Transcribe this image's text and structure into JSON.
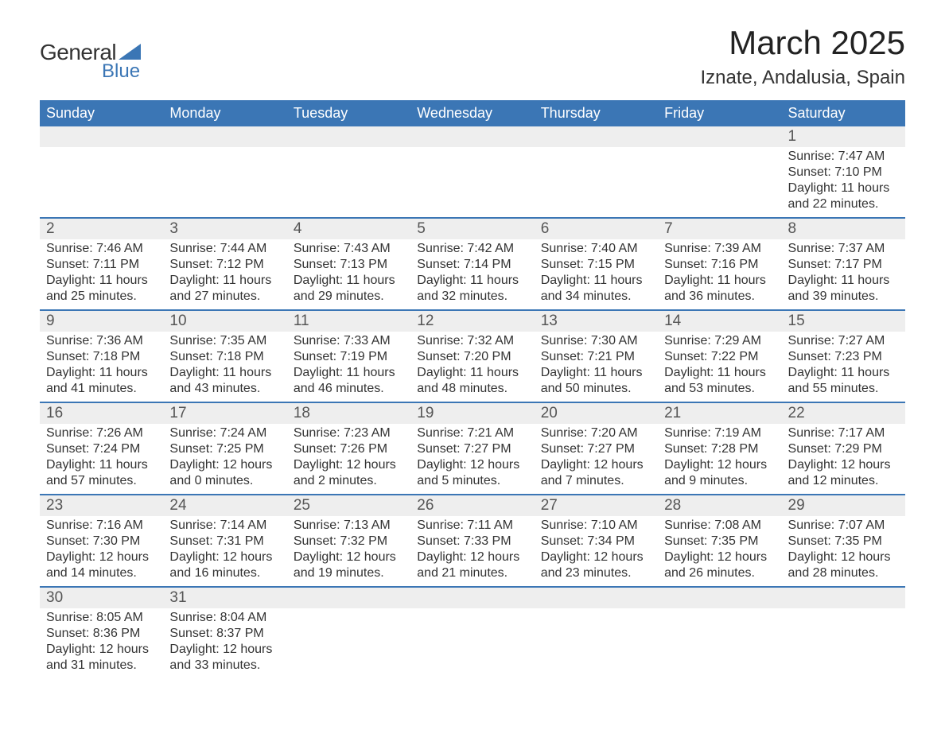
{
  "logo": {
    "text_general": "General",
    "text_blue": "Blue",
    "triangle_color": "#3b76b5"
  },
  "title": "March 2025",
  "location": "Iznate, Andalusia, Spain",
  "colors": {
    "header_bg": "#3b76b5",
    "header_text": "#ffffff",
    "day_num_bg": "#eeeeee",
    "row_border": "#3b76b5",
    "body_text": "#333333"
  },
  "day_headers": [
    "Sunday",
    "Monday",
    "Tuesday",
    "Wednesday",
    "Thursday",
    "Friday",
    "Saturday"
  ],
  "weeks": [
    [
      null,
      null,
      null,
      null,
      null,
      null,
      {
        "num": "1",
        "sunrise": "Sunrise: 7:47 AM",
        "sunset": "Sunset: 7:10 PM",
        "daylight1": "Daylight: 11 hours",
        "daylight2": "and 22 minutes."
      }
    ],
    [
      {
        "num": "2",
        "sunrise": "Sunrise: 7:46 AM",
        "sunset": "Sunset: 7:11 PM",
        "daylight1": "Daylight: 11 hours",
        "daylight2": "and 25 minutes."
      },
      {
        "num": "3",
        "sunrise": "Sunrise: 7:44 AM",
        "sunset": "Sunset: 7:12 PM",
        "daylight1": "Daylight: 11 hours",
        "daylight2": "and 27 minutes."
      },
      {
        "num": "4",
        "sunrise": "Sunrise: 7:43 AM",
        "sunset": "Sunset: 7:13 PM",
        "daylight1": "Daylight: 11 hours",
        "daylight2": "and 29 minutes."
      },
      {
        "num": "5",
        "sunrise": "Sunrise: 7:42 AM",
        "sunset": "Sunset: 7:14 PM",
        "daylight1": "Daylight: 11 hours",
        "daylight2": "and 32 minutes."
      },
      {
        "num": "6",
        "sunrise": "Sunrise: 7:40 AM",
        "sunset": "Sunset: 7:15 PM",
        "daylight1": "Daylight: 11 hours",
        "daylight2": "and 34 minutes."
      },
      {
        "num": "7",
        "sunrise": "Sunrise: 7:39 AM",
        "sunset": "Sunset: 7:16 PM",
        "daylight1": "Daylight: 11 hours",
        "daylight2": "and 36 minutes."
      },
      {
        "num": "8",
        "sunrise": "Sunrise: 7:37 AM",
        "sunset": "Sunset: 7:17 PM",
        "daylight1": "Daylight: 11 hours",
        "daylight2": "and 39 minutes."
      }
    ],
    [
      {
        "num": "9",
        "sunrise": "Sunrise: 7:36 AM",
        "sunset": "Sunset: 7:18 PM",
        "daylight1": "Daylight: 11 hours",
        "daylight2": "and 41 minutes."
      },
      {
        "num": "10",
        "sunrise": "Sunrise: 7:35 AM",
        "sunset": "Sunset: 7:18 PM",
        "daylight1": "Daylight: 11 hours",
        "daylight2": "and 43 minutes."
      },
      {
        "num": "11",
        "sunrise": "Sunrise: 7:33 AM",
        "sunset": "Sunset: 7:19 PM",
        "daylight1": "Daylight: 11 hours",
        "daylight2": "and 46 minutes."
      },
      {
        "num": "12",
        "sunrise": "Sunrise: 7:32 AM",
        "sunset": "Sunset: 7:20 PM",
        "daylight1": "Daylight: 11 hours",
        "daylight2": "and 48 minutes."
      },
      {
        "num": "13",
        "sunrise": "Sunrise: 7:30 AM",
        "sunset": "Sunset: 7:21 PM",
        "daylight1": "Daylight: 11 hours",
        "daylight2": "and 50 minutes."
      },
      {
        "num": "14",
        "sunrise": "Sunrise: 7:29 AM",
        "sunset": "Sunset: 7:22 PM",
        "daylight1": "Daylight: 11 hours",
        "daylight2": "and 53 minutes."
      },
      {
        "num": "15",
        "sunrise": "Sunrise: 7:27 AM",
        "sunset": "Sunset: 7:23 PM",
        "daylight1": "Daylight: 11 hours",
        "daylight2": "and 55 minutes."
      }
    ],
    [
      {
        "num": "16",
        "sunrise": "Sunrise: 7:26 AM",
        "sunset": "Sunset: 7:24 PM",
        "daylight1": "Daylight: 11 hours",
        "daylight2": "and 57 minutes."
      },
      {
        "num": "17",
        "sunrise": "Sunrise: 7:24 AM",
        "sunset": "Sunset: 7:25 PM",
        "daylight1": "Daylight: 12 hours",
        "daylight2": "and 0 minutes."
      },
      {
        "num": "18",
        "sunrise": "Sunrise: 7:23 AM",
        "sunset": "Sunset: 7:26 PM",
        "daylight1": "Daylight: 12 hours",
        "daylight2": "and 2 minutes."
      },
      {
        "num": "19",
        "sunrise": "Sunrise: 7:21 AM",
        "sunset": "Sunset: 7:27 PM",
        "daylight1": "Daylight: 12 hours",
        "daylight2": "and 5 minutes."
      },
      {
        "num": "20",
        "sunrise": "Sunrise: 7:20 AM",
        "sunset": "Sunset: 7:27 PM",
        "daylight1": "Daylight: 12 hours",
        "daylight2": "and 7 minutes."
      },
      {
        "num": "21",
        "sunrise": "Sunrise: 7:19 AM",
        "sunset": "Sunset: 7:28 PM",
        "daylight1": "Daylight: 12 hours",
        "daylight2": "and 9 minutes."
      },
      {
        "num": "22",
        "sunrise": "Sunrise: 7:17 AM",
        "sunset": "Sunset: 7:29 PM",
        "daylight1": "Daylight: 12 hours",
        "daylight2": "and 12 minutes."
      }
    ],
    [
      {
        "num": "23",
        "sunrise": "Sunrise: 7:16 AM",
        "sunset": "Sunset: 7:30 PM",
        "daylight1": "Daylight: 12 hours",
        "daylight2": "and 14 minutes."
      },
      {
        "num": "24",
        "sunrise": "Sunrise: 7:14 AM",
        "sunset": "Sunset: 7:31 PM",
        "daylight1": "Daylight: 12 hours",
        "daylight2": "and 16 minutes."
      },
      {
        "num": "25",
        "sunrise": "Sunrise: 7:13 AM",
        "sunset": "Sunset: 7:32 PM",
        "daylight1": "Daylight: 12 hours",
        "daylight2": "and 19 minutes."
      },
      {
        "num": "26",
        "sunrise": "Sunrise: 7:11 AM",
        "sunset": "Sunset: 7:33 PM",
        "daylight1": "Daylight: 12 hours",
        "daylight2": "and 21 minutes."
      },
      {
        "num": "27",
        "sunrise": "Sunrise: 7:10 AM",
        "sunset": "Sunset: 7:34 PM",
        "daylight1": "Daylight: 12 hours",
        "daylight2": "and 23 minutes."
      },
      {
        "num": "28",
        "sunrise": "Sunrise: 7:08 AM",
        "sunset": "Sunset: 7:35 PM",
        "daylight1": "Daylight: 12 hours",
        "daylight2": "and 26 minutes."
      },
      {
        "num": "29",
        "sunrise": "Sunrise: 7:07 AM",
        "sunset": "Sunset: 7:35 PM",
        "daylight1": "Daylight: 12 hours",
        "daylight2": "and 28 minutes."
      }
    ],
    [
      {
        "num": "30",
        "sunrise": "Sunrise: 8:05 AM",
        "sunset": "Sunset: 8:36 PM",
        "daylight1": "Daylight: 12 hours",
        "daylight2": "and 31 minutes."
      },
      {
        "num": "31",
        "sunrise": "Sunrise: 8:04 AM",
        "sunset": "Sunset: 8:37 PM",
        "daylight1": "Daylight: 12 hours",
        "daylight2": "and 33 minutes."
      },
      null,
      null,
      null,
      null,
      null
    ]
  ]
}
